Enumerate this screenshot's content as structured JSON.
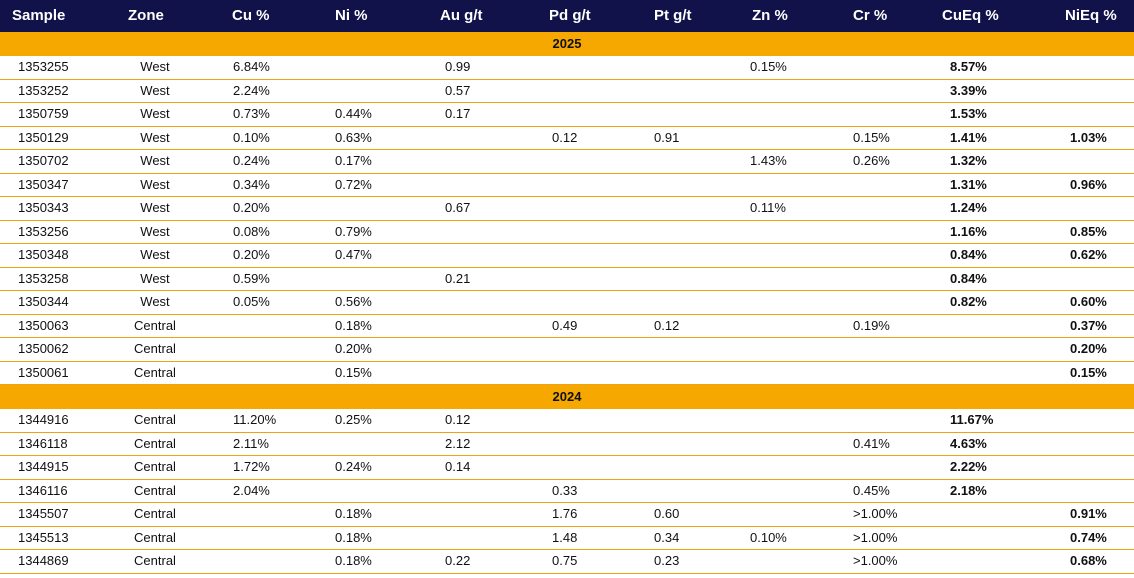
{
  "table": {
    "headers": [
      "Sample",
      "Zone",
      "Cu %",
      "Ni %",
      "Au g/t",
      "Pd g/t",
      "Pt g/t",
      "Zn %",
      "Cr %",
      "CuEq %",
      "NiEq %"
    ],
    "sections": [
      {
        "title": "2025",
        "rows": [
          [
            "1353255",
            "West",
            "6.84%",
            null,
            "0.99",
            null,
            null,
            "0.15%",
            null,
            "8.57%",
            null
          ],
          [
            "1353252",
            "West",
            "2.24%",
            null,
            "0.57",
            null,
            null,
            null,
            null,
            "3.39%",
            null
          ],
          [
            "1350759",
            "West",
            "0.73%",
            "0.44%",
            "0.17",
            null,
            null,
            null,
            null,
            "1.53%",
            null
          ],
          [
            "1350129",
            "West",
            "0.10%",
            "0.63%",
            null,
            "0.12",
            "0.91",
            null,
            "0.15%",
            "1.41%",
            "1.03%"
          ],
          [
            "1350702",
            "West",
            "0.24%",
            "0.17%",
            null,
            null,
            null,
            "1.43%",
            "0.26%",
            "1.32%",
            null
          ],
          [
            "1350347",
            "West",
            "0.34%",
            "0.72%",
            null,
            null,
            null,
            null,
            null,
            "1.31%",
            "0.96%"
          ],
          [
            "1350343",
            "West",
            "0.20%",
            null,
            "0.67",
            null,
            null,
            "0.11%",
            null,
            "1.24%",
            null
          ],
          [
            "1353256",
            "West",
            "0.08%",
            "0.79%",
            null,
            null,
            null,
            null,
            null,
            "1.16%",
            "0.85%"
          ],
          [
            "1350348",
            "West",
            "0.20%",
            "0.47%",
            null,
            null,
            null,
            null,
            null,
            "0.84%",
            "0.62%"
          ],
          [
            "1353258",
            "West",
            "0.59%",
            null,
            "0.21",
            null,
            null,
            null,
            null,
            "0.84%",
            null
          ],
          [
            "1350344",
            "West",
            "0.05%",
            "0.56%",
            null,
            null,
            null,
            null,
            null,
            "0.82%",
            "0.60%"
          ],
          [
            "1350063",
            "Central",
            null,
            "0.18%",
            null,
            "0.49",
            "0.12",
            null,
            "0.19%",
            null,
            "0.37%"
          ],
          [
            "1350062",
            "Central",
            null,
            "0.20%",
            null,
            null,
            null,
            null,
            null,
            null,
            "0.20%"
          ],
          [
            "1350061",
            "Central",
            null,
            "0.15%",
            null,
            null,
            null,
            null,
            null,
            null,
            "0.15%"
          ]
        ]
      },
      {
        "title": "2024",
        "rows": [
          [
            "1344916",
            "Central",
            "11.20%",
            "0.25%",
            "0.12",
            null,
            null,
            null,
            null,
            "11.67%",
            null
          ],
          [
            "1346118",
            "Central",
            "2.11%",
            null,
            "2.12",
            null,
            null,
            null,
            "0.41%",
            "4.63%",
            null
          ],
          [
            "1344915",
            "Central",
            "1.72%",
            "0.24%",
            "0.14",
            null,
            null,
            null,
            null,
            "2.22%",
            null
          ],
          [
            "1346116",
            "Central",
            "2.04%",
            null,
            null,
            "0.33",
            null,
            null,
            "0.45%",
            "2.18%",
            null
          ],
          [
            "1345507",
            "Central",
            null,
            "0.18%",
            null,
            "1.76",
            "0.60",
            null,
            ">1.00%",
            null,
            "0.91%"
          ],
          [
            "1345513",
            "Central",
            null,
            "0.18%",
            null,
            "1.48",
            "0.34",
            "0.10%",
            ">1.00%",
            null,
            "0.74%"
          ],
          [
            "1344869",
            "Central",
            null,
            "0.18%",
            "0.22",
            "0.75",
            "0.23",
            null,
            ">1.00%",
            null,
            "0.68%"
          ]
        ]
      }
    ]
  }
}
